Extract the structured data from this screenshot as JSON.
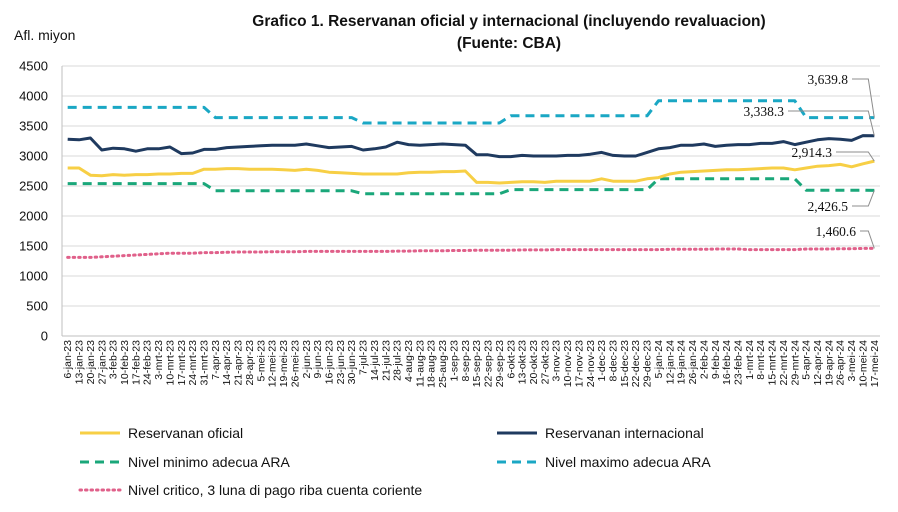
{
  "chart_data": {
    "type": "line",
    "title_line1": "Grafico 1. Reservanan oficial y internacional (incluyendo revaluacion)",
    "title_line2": "(Fuente: CBA)",
    "ylabel": "Afl. miyon",
    "ylim": [
      0,
      4500
    ],
    "yticks": [
      0,
      500,
      1000,
      1500,
      2000,
      2500,
      3000,
      3500,
      4000,
      4500
    ],
    "grid": true,
    "legend_position": "bottom",
    "categories": [
      "6-jan-23",
      "13-jan-23",
      "20-jan-23",
      "27-jan-23",
      "3-feb-23",
      "10-feb-23",
      "17-feb-23",
      "24-feb-23",
      "3-mrt-23",
      "10-mrt-23",
      "17-mrt-23",
      "24-mrt-23",
      "31-mrt-23",
      "7-apr-23",
      "14-apr-23",
      "21-apr-23",
      "28-apr-23",
      "5-mei-23",
      "12-mei-23",
      "19-mei-23",
      "26-mei-23",
      "2-jun-23",
      "9-jun-23",
      "16-jun-23",
      "23-jun-23",
      "30-jun-23",
      "7-jul-23",
      "14-jul-23",
      "21-jul-23",
      "28-jul-23",
      "4-aug-23",
      "11-aug-23",
      "18-aug-23",
      "25-aug-23",
      "1-sep-23",
      "8-sep-23",
      "15-sep-23",
      "22-sep-23",
      "29-sep-23",
      "6-okt-23",
      "13-okt-23",
      "20-okt-23",
      "27-okt-23",
      "3-nov-23",
      "10-nov-23",
      "17-nov-23",
      "24-nov-23",
      "1-dec-23",
      "8-dec-23",
      "15-dec-23",
      "22-dec-23",
      "29-dec-23",
      "5-jan-24",
      "12-jan-24",
      "19-jan-24",
      "26-jan-24",
      "2-feb-24",
      "9-feb-24",
      "16-feb-24",
      "23-feb-24",
      "1-mrt-24",
      "8-mrt-24",
      "15-mrt-24",
      "22-mrt-24",
      "29-mrt-24",
      "5-apr-24",
      "12-apr-24",
      "19-apr-24",
      "26-apr-24",
      "3-mei-24",
      "10-mei-24",
      "17-mei-24"
    ],
    "series": [
      {
        "name": "Reservanan oficial",
        "color": "#f7cf45",
        "style": "solid",
        "values": [
          2800,
          2800,
          2680,
          2670,
          2690,
          2680,
          2690,
          2690,
          2700,
          2700,
          2710,
          2710,
          2780,
          2780,
          2790,
          2790,
          2780,
          2780,
          2780,
          2770,
          2760,
          2780,
          2760,
          2730,
          2720,
          2710,
          2700,
          2700,
          2700,
          2700,
          2720,
          2730,
          2730,
          2740,
          2740,
          2750,
          2560,
          2560,
          2550,
          2560,
          2570,
          2570,
          2560,
          2580,
          2580,
          2580,
          2580,
          2620,
          2580,
          2580,
          2580,
          2620,
          2640,
          2700,
          2730,
          2740,
          2750,
          2760,
          2770,
          2770,
          2780,
          2790,
          2800,
          2800,
          2770,
          2800,
          2830,
          2840,
          2860,
          2820,
          2870,
          2914.3
        ]
      },
      {
        "name": "Reservanan internacional",
        "color": "#1f3a5f",
        "style": "solid",
        "values": [
          3280,
          3270,
          3300,
          3100,
          3130,
          3120,
          3080,
          3120,
          3120,
          3150,
          3040,
          3050,
          3110,
          3110,
          3140,
          3150,
          3160,
          3170,
          3180,
          3180,
          3180,
          3200,
          3170,
          3140,
          3150,
          3160,
          3100,
          3120,
          3150,
          3230,
          3190,
          3180,
          3190,
          3200,
          3190,
          3180,
          3020,
          3020,
          2990,
          2990,
          3010,
          3000,
          3000,
          3000,
          3010,
          3010,
          3030,
          3060,
          3010,
          3000,
          3000,
          3060,
          3120,
          3140,
          3180,
          3180,
          3200,
          3160,
          3180,
          3190,
          3190,
          3210,
          3210,
          3240,
          3190,
          3230,
          3270,
          3290,
          3280,
          3260,
          3340,
          3338.3
        ]
      },
      {
        "name": "Nivel minimo adecua ARA",
        "color": "#1aa77a",
        "style": "dashed",
        "values": [
          2540,
          2540,
          2540,
          2540,
          2540,
          2540,
          2540,
          2540,
          2540,
          2540,
          2540,
          2540,
          2540,
          2420,
          2420,
          2420,
          2420,
          2420,
          2420,
          2420,
          2420,
          2420,
          2420,
          2420,
          2420,
          2420,
          2370,
          2370,
          2370,
          2370,
          2370,
          2370,
          2370,
          2370,
          2370,
          2370,
          2370,
          2370,
          2370,
          2440,
          2440,
          2440,
          2440,
          2440,
          2440,
          2440,
          2440,
          2440,
          2440,
          2440,
          2440,
          2440,
          2620,
          2620,
          2620,
          2620,
          2620,
          2620,
          2620,
          2620,
          2620,
          2620,
          2620,
          2620,
          2620,
          2430,
          2430,
          2430,
          2430,
          2430,
          2430,
          2426.5
        ]
      },
      {
        "name": "Nivel maximo adecua ARA",
        "color": "#1aa7c4",
        "style": "dashed",
        "values": [
          3810,
          3810,
          3810,
          3810,
          3810,
          3810,
          3810,
          3810,
          3810,
          3810,
          3810,
          3810,
          3810,
          3640,
          3640,
          3640,
          3640,
          3640,
          3640,
          3640,
          3640,
          3640,
          3640,
          3640,
          3640,
          3640,
          3550,
          3550,
          3550,
          3550,
          3550,
          3550,
          3550,
          3550,
          3550,
          3550,
          3550,
          3550,
          3550,
          3670,
          3670,
          3670,
          3670,
          3670,
          3670,
          3670,
          3670,
          3670,
          3670,
          3670,
          3670,
          3670,
          3920,
          3920,
          3920,
          3920,
          3920,
          3920,
          3920,
          3920,
          3920,
          3920,
          3920,
          3920,
          3920,
          3640,
          3640,
          3640,
          3640,
          3640,
          3640,
          3639.8
        ]
      },
      {
        "name": "Nivel critico, 3 luna di pago riba cuenta coriente",
        "color": "#e0608a",
        "style": "dotted",
        "values": [
          1310,
          1310,
          1310,
          1320,
          1330,
          1340,
          1350,
          1360,
          1370,
          1380,
          1380,
          1380,
          1390,
          1390,
          1395,
          1400,
          1400,
          1400,
          1405,
          1405,
          1405,
          1410,
          1410,
          1410,
          1410,
          1410,
          1410,
          1410,
          1410,
          1415,
          1415,
          1420,
          1420,
          1420,
          1425,
          1425,
          1430,
          1430,
          1430,
          1430,
          1435,
          1435,
          1435,
          1440,
          1440,
          1440,
          1440,
          1440,
          1440,
          1440,
          1440,
          1440,
          1440,
          1445,
          1445,
          1445,
          1445,
          1450,
          1450,
          1450,
          1440,
          1440,
          1440,
          1440,
          1440,
          1450,
          1450,
          1450,
          1455,
          1455,
          1460,
          1460.6
        ]
      }
    ],
    "end_labels": [
      {
        "series": 3,
        "text": "3,639.8"
      },
      {
        "series": 1,
        "text": "3,338.3"
      },
      {
        "series": 0,
        "text": "2,914.3"
      },
      {
        "series": 2,
        "text": "2,426.5"
      },
      {
        "series": 4,
        "text": "1,460.6"
      }
    ]
  }
}
